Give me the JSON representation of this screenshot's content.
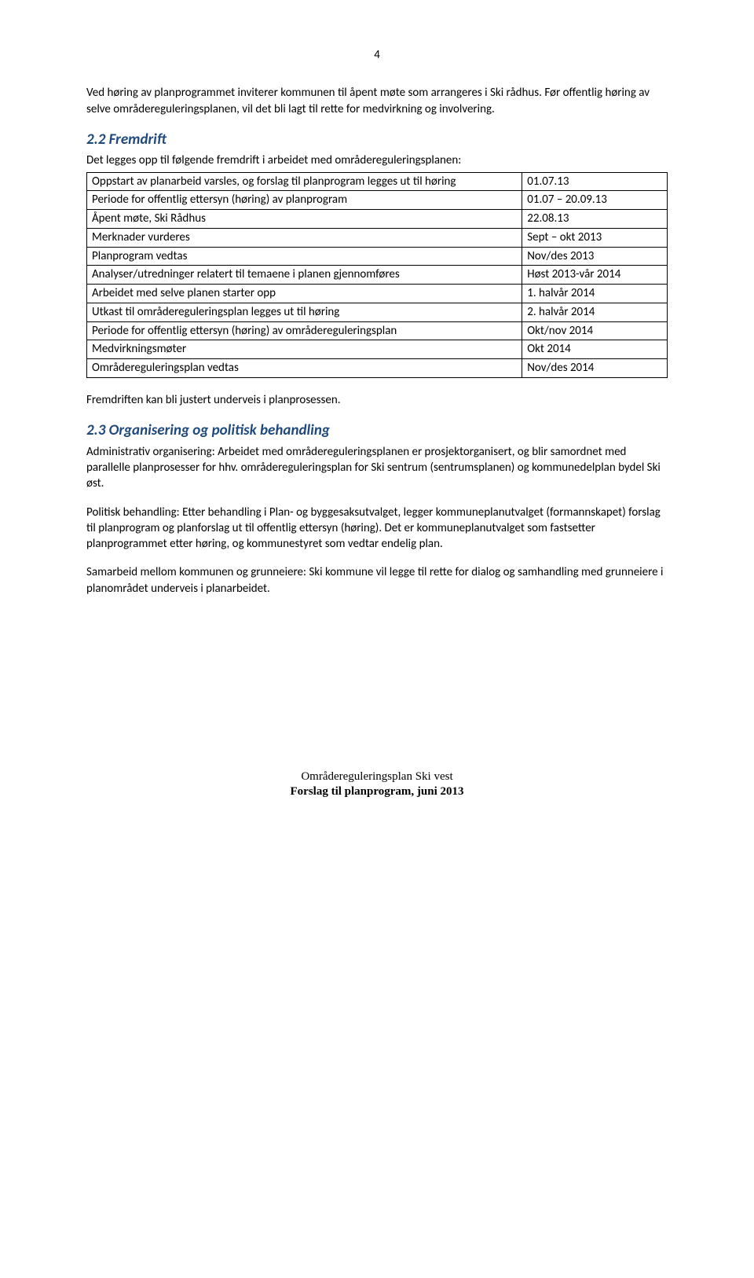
{
  "page_number": "4",
  "intro_para": "Ved høring av planprogrammet inviterer kommunen til åpent møte som arrangeres i Ski rådhus. Før offentlig høring av selve områdereguleringsplanen, vil det bli lagt til rette for medvirkning og involvering.",
  "section_22": {
    "heading": "2.2 Fremdrift",
    "lead": "Det legges opp til følgende fremdrift i arbeidet med områdereguleringsplanen:",
    "rows": [
      {
        "activity": "Oppstart av planarbeid varsles, og forslag til planprogram legges ut til høring",
        "time": "01.07.13"
      },
      {
        "activity": "Periode for offentlig ettersyn (høring) av planprogram",
        "time": "01.07 – 20.09.13"
      },
      {
        "activity": "Åpent møte, Ski Rådhus",
        "time": "22.08.13"
      },
      {
        "activity": "Merknader vurderes",
        "time": "Sept – okt 2013"
      },
      {
        "activity": "Planprogram vedtas",
        "time": "Nov/des 2013"
      },
      {
        "activity": "Analyser/utredninger relatert til temaene i planen  gjennomføres",
        "time": "Høst 2013-vår 2014"
      },
      {
        "activity": "Arbeidet med selve planen starter opp",
        "time": "1. halvår 2014"
      },
      {
        "activity": "Utkast til områdereguleringsplan legges ut til høring",
        "time": "2. halvår 2014"
      },
      {
        "activity": "Periode for offentlig ettersyn (høring) av områdereguleringsplan",
        "time": "Okt/nov 2014"
      },
      {
        "activity": "Medvirkningsmøter",
        "time": "Okt 2014"
      },
      {
        "activity": "Områdereguleringsplan vedtas",
        "time": "Nov/des 2014"
      }
    ],
    "after": "Fremdriften kan bli justert underveis i planprosessen."
  },
  "section_23": {
    "heading": "2.3 Organisering og politisk behandling",
    "p1": "Administrativ organisering: Arbeidet med områdereguleringsplanen er prosjektorganisert, og blir samordnet med parallelle planprosesser for hhv. områdereguleringsplan for Ski sentrum (sentrumsplanen) og kommunedelplan bydel Ski øst.",
    "p2": "Politisk behandling: Etter behandling i Plan- og byggesaksutvalget, legger kommuneplanutvalget (formannskapet) forslag til planprogram og planforslag ut til offentlig ettersyn (høring). Det er kommuneplanutvalget som fastsetter planprogrammet etter høring, og kommunestyret som vedtar endelig plan.",
    "p3": "Samarbeid mellom kommunen og grunneiere: Ski kommune vil legge til rette for dialog og samhandling med grunneiere i planområdet underveis i planarbeidet."
  },
  "footer": {
    "line1": "Områdereguleringsplan Ski vest",
    "line2": "Forslag til planprogram, juni 2013"
  },
  "colors": {
    "heading": "#1f497d",
    "text": "#000000",
    "border": "#000000",
    "background": "#ffffff"
  }
}
